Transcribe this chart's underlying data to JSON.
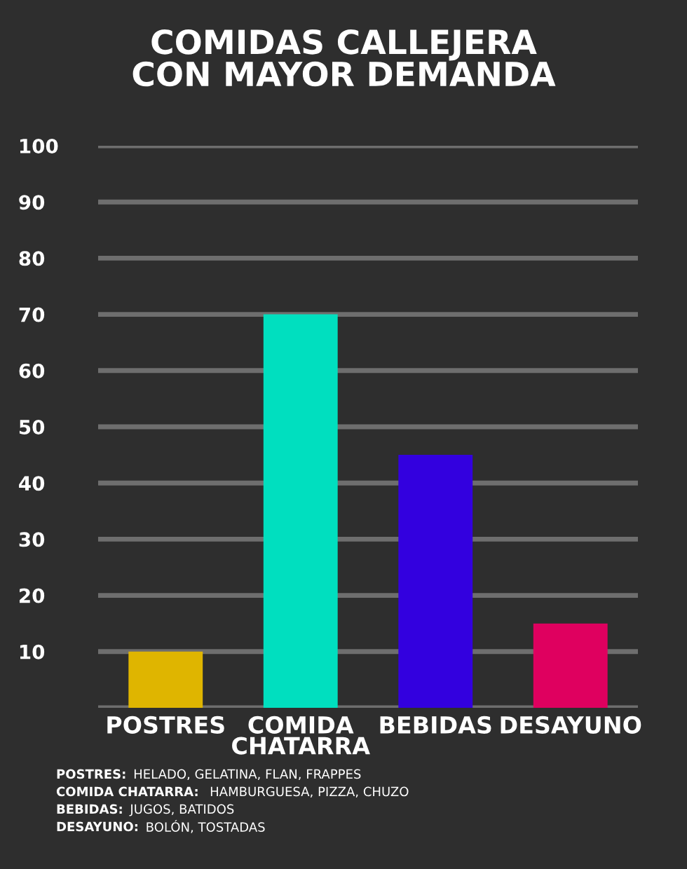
{
  "chart_data": {
    "type": "bar",
    "title": "COMIDAS CALLEJERA\nCON MAYOR DEMANDA",
    "categories": [
      "POSTRES",
      "COMIDA\nCHATARRA",
      "BEBIDAS",
      "DESAYUNO"
    ],
    "values": [
      10,
      70,
      45,
      15
    ],
    "colors": [
      "#dfb500",
      "#00dfbf",
      "#3300df",
      "#df005f"
    ],
    "ylim": [
      0,
      100
    ],
    "yticks": [
      {
        "value": 0,
        "label": null
      },
      10,
      20,
      30,
      40,
      50,
      60,
      70,
      80,
      90,
      100
    ],
    "grid": "y",
    "annotations": [
      "POSTRES: HELADO, GELATINA, FLAN, FRAPPES",
      "COMIDA CHATARRA:  HAMBURGUESA, PIZZA, CHUZO",
      "BEBIDAS: JUGOS, BATIDOS",
      "DESAYUNO: BOLÓN, TOSTADAS"
    ]
  }
}
